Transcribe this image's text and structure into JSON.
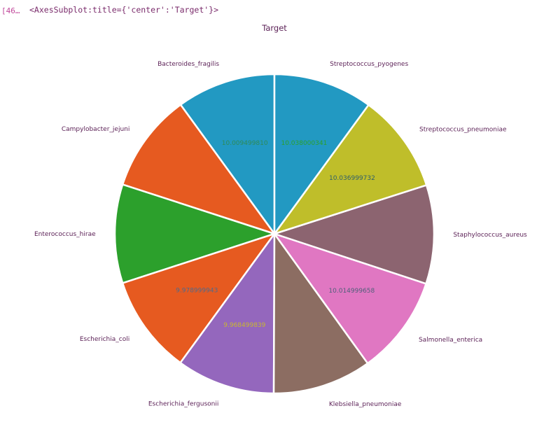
{
  "notebook": {
    "prompt": "[46…",
    "output_repr": "<AxesSubplot:title={'center':'Target'}>"
  },
  "chart_data": {
    "type": "pie",
    "title": "Target",
    "start_angle_deg": 90,
    "direction": "counterclockwise",
    "categories": [
      "Bacteroides_fragilis",
      "Campylobacter_jejuni",
      "Enterococcus_hirae",
      "Escherichia_coli",
      "Escherichia_fergusonii",
      "Klebsiella_pneumoniae",
      "Salmonella_enterica",
      "Staphylococcus_aureus",
      "Streptococcus_pneumoniae",
      "Streptococcus_pyogenes"
    ],
    "values": [
      10.00949981,
      10.0,
      10.0,
      9.978999943,
      9.968499839,
      10.0,
      10.014999658,
      10.0,
      10.036999732,
      10.038000341
    ],
    "value_labels": [
      "10.009499810",
      "",
      "",
      "9.978999943",
      "9.968499839",
      "",
      "10.014999658",
      "",
      "10.036999732",
      "10.038000341"
    ],
    "colors": [
      "#2299c2",
      "#e65a20",
      "#2ca02c",
      "#e65a20",
      "#9467bd",
      "#8c6d62",
      "#e077c2",
      "#8c6470",
      "#bfbe2a",
      "#2299c2"
    ],
    "value_label_colors": [
      "#2e8b57",
      "#d08a3a",
      "#2ca02c",
      "#4f6a8c",
      "#c8b830",
      "#8c8c6a",
      "#4f5f7a",
      "#2ca02c",
      "#2f5f6a",
      "#2ca02c"
    ]
  }
}
